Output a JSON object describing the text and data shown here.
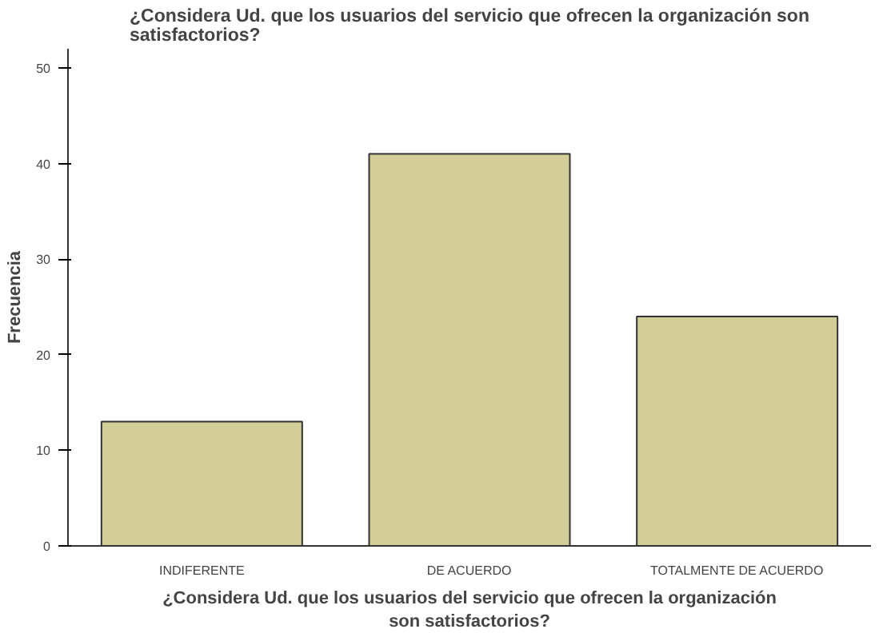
{
  "chart_data": {
    "type": "bar",
    "title": "¿Considera Ud. que los usuarios del servicio que ofrecen la organización son\nsatisfactorios?",
    "xlabel": "¿Considera Ud. que los usuarios del servicio que ofrecen la organización\nson satisfactorios?",
    "ylabel": "Frecuencia",
    "categories": [
      "INDIFERENTE",
      "DE ACUERDO",
      "TOTALMENTE DE ACUERDO"
    ],
    "values": [
      13,
      41,
      24
    ],
    "color": "#d3ce97",
    "ylim": [
      0,
      52
    ],
    "yticks": [
      0,
      10,
      20,
      30,
      40,
      50
    ],
    "grid": false
  }
}
